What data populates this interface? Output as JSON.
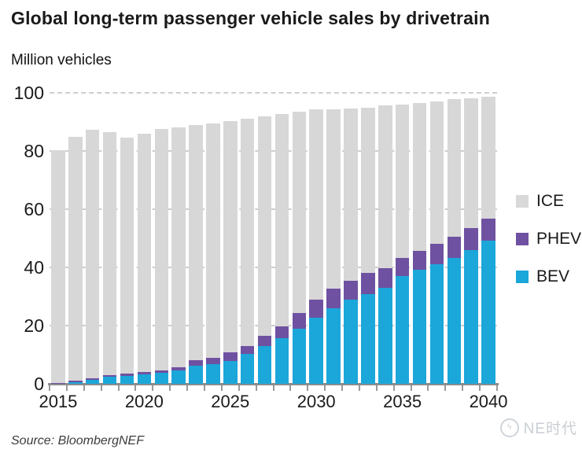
{
  "header": {
    "title": "Global long-term passenger vehicle sales by drivetrain",
    "units_label": "Million vehicles"
  },
  "chart_data": {
    "type": "bar",
    "stacked": true,
    "title": "Global long-term passenger vehicle sales by drivetrain",
    "ylabel": "Million vehicles",
    "xlabel": "",
    "ylim": [
      0,
      100
    ],
    "yticks": [
      0,
      20,
      40,
      60,
      80,
      100
    ],
    "grid": "horizontal-dashed",
    "legend_position": "right",
    "categories": [
      2015,
      2016,
      2017,
      2018,
      2019,
      2020,
      2021,
      2022,
      2023,
      2024,
      2025,
      2026,
      2027,
      2028,
      2029,
      2030,
      2031,
      2032,
      2033,
      2034,
      2035,
      2036,
      2037,
      2038,
      2039,
      2040
    ],
    "xticks_labeled": [
      2015,
      2020,
      2025,
      2030,
      2035,
      2040
    ],
    "series": [
      {
        "name": "BEV",
        "color": "#1ba7da",
        "values": [
          0.2,
          0.5,
          1.4,
          2.3,
          2.8,
          3.2,
          3.7,
          4.5,
          6.2,
          6.8,
          7.9,
          10.2,
          13.1,
          15.8,
          19.0,
          22.6,
          26.0,
          29.0,
          30.8,
          32.9,
          36.9,
          39.2,
          41.1,
          43.2,
          46.0,
          49.1
        ]
      },
      {
        "name": "PHEV",
        "color": "#6f51a1",
        "values": [
          0.2,
          0.5,
          0.5,
          0.6,
          0.8,
          0.9,
          1.0,
          1.2,
          1.9,
          2.2,
          2.9,
          2.9,
          3.3,
          4.0,
          5.2,
          6.4,
          6.6,
          6.4,
          7.2,
          6.8,
          6.3,
          6.5,
          7.0,
          7.4,
          7.6,
          7.6
        ]
      },
      {
        "name": "ICE",
        "color": "#d7d7d7",
        "values": [
          80.0,
          83.9,
          85.5,
          83.7,
          81.0,
          81.9,
          82.8,
          82.4,
          80.7,
          80.5,
          79.4,
          78.0,
          75.5,
          72.9,
          69.3,
          65.2,
          61.8,
          59.3,
          57.0,
          55.9,
          52.8,
          50.7,
          49.0,
          47.2,
          44.6,
          41.9
        ]
      }
    ],
    "legend": [
      {
        "label": "ICE",
        "color": "#d9d9d9"
      },
      {
        "label": "PHEV",
        "color": "#6f51a1"
      },
      {
        "label": "BEV",
        "color": "#1ba7da"
      }
    ]
  },
  "footer": {
    "source": "Source: BloombergNEF"
  },
  "watermark": {
    "text": "NE时代",
    "logo_glyph": "ϟ"
  }
}
